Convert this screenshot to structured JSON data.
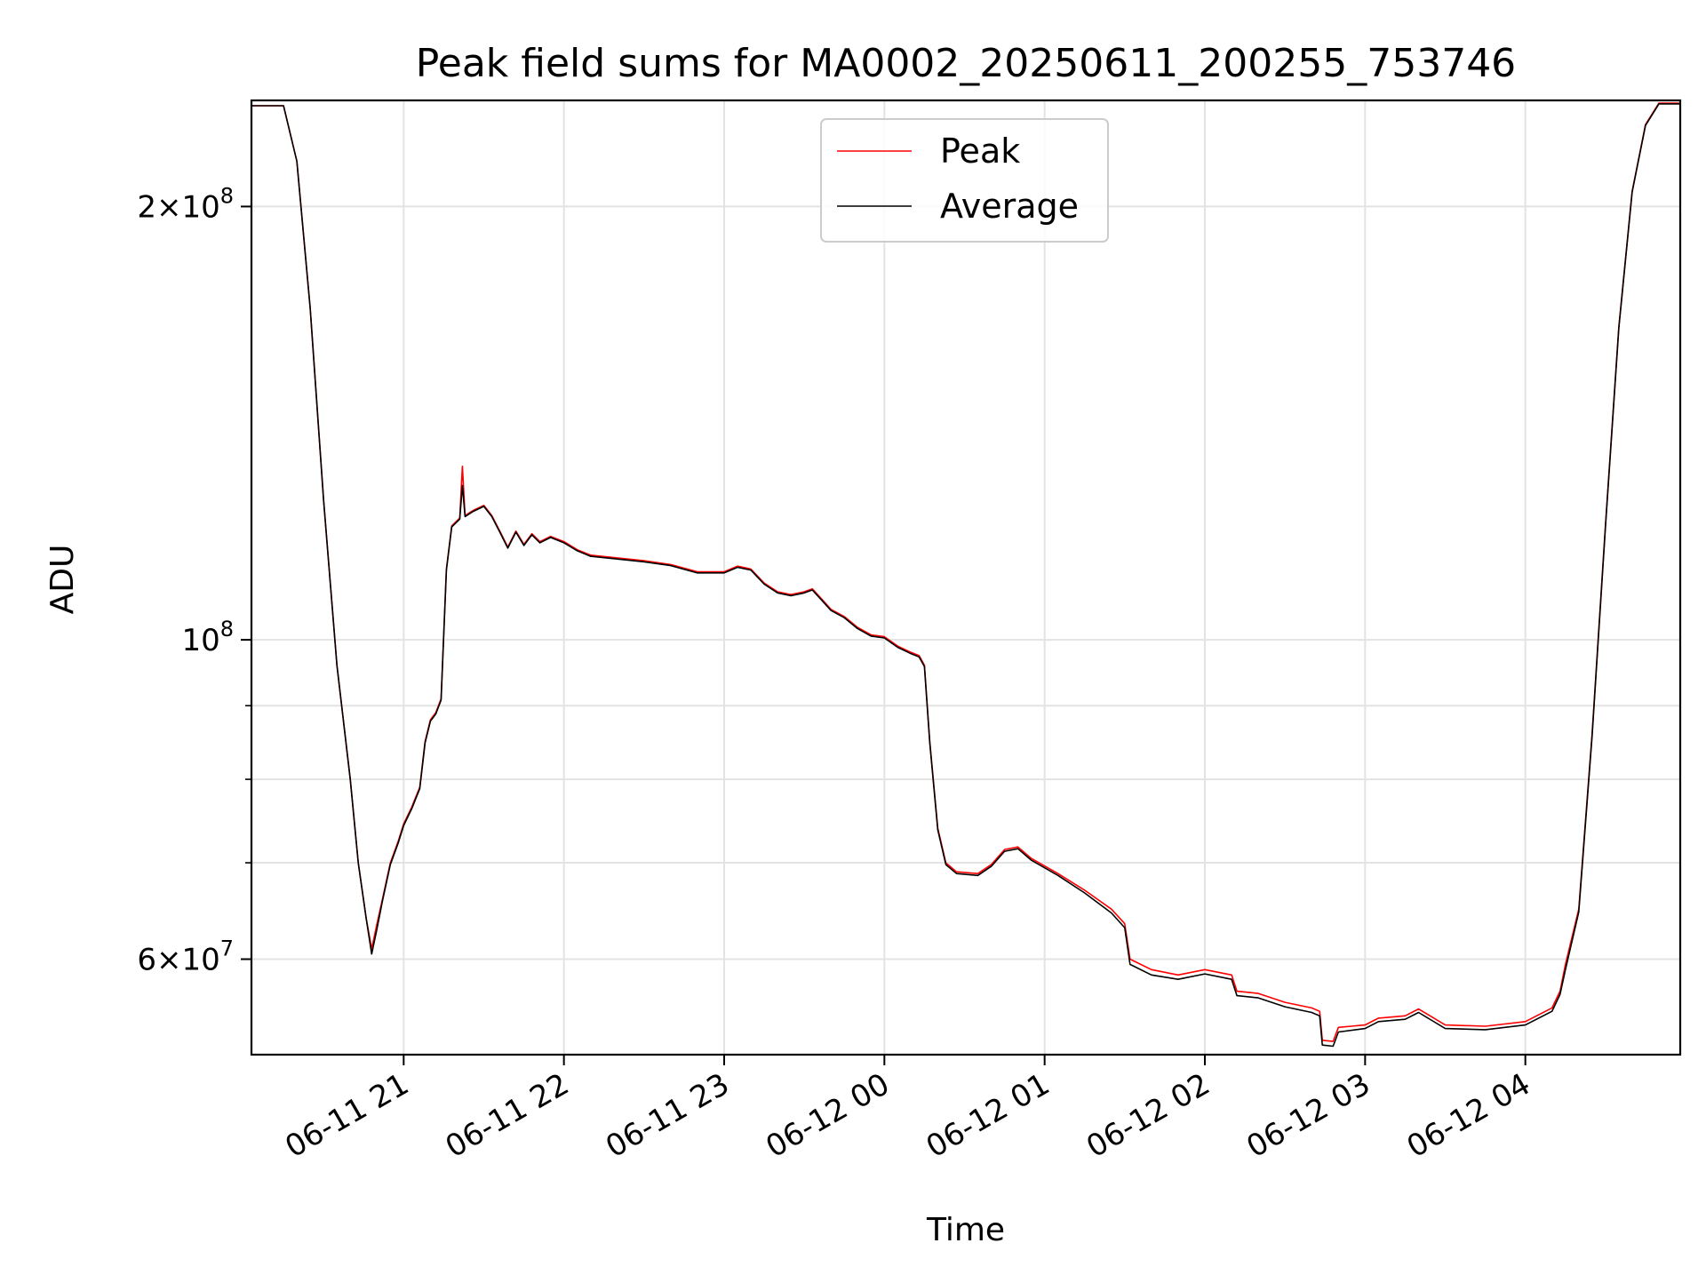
{
  "chart_data": {
    "type": "line",
    "title": "Peak field sums for MA0002_20250611_200255_753746",
    "xlabel": "Time",
    "ylabel": "ADU",
    "yscale": "log",
    "ylim": [
      51500000,
      237000000
    ],
    "xlim": [
      "2025-06-11 20:03",
      "2025-06-12 04:58"
    ],
    "x_ticks": [
      "06-11 21",
      "06-11 22",
      "06-11 23",
      "06-12 00",
      "06-12 01",
      "06-12 02",
      "06-12 03",
      "06-12 04"
    ],
    "y_ticks": [
      {
        "value": 60000000,
        "mantissa": "6",
        "exp": "7"
      },
      {
        "value": 100000000,
        "mantissa": "",
        "exp": "8"
      },
      {
        "value": 200000000,
        "mantissa": "2",
        "exp": "8"
      }
    ],
    "grid": true,
    "legend_position": "top-center",
    "series": [
      {
        "name": "Peak",
        "color": "#ff0000",
        "values": [
          [
            "2025-06-11 20:03",
            235000000
          ],
          [
            "2025-06-11 20:15",
            235000000
          ],
          [
            "2025-06-11 20:20",
            215000000
          ],
          [
            "2025-06-11 20:25",
            170000000
          ],
          [
            "2025-06-11 20:30",
            125000000
          ],
          [
            "2025-06-11 20:35",
            96000000
          ],
          [
            "2025-06-11 20:40",
            80000000
          ],
          [
            "2025-06-11 20:43",
            70000000
          ],
          [
            "2025-06-11 20:46",
            64000000
          ],
          [
            "2025-06-11 20:48",
            61000000
          ],
          [
            "2025-06-11 20:50",
            63500000
          ],
          [
            "2025-06-11 20:52",
            66000000
          ],
          [
            "2025-06-11 20:55",
            70000000
          ],
          [
            "2025-06-11 20:58",
            72500000
          ],
          [
            "2025-06-11 21:00",
            74500000
          ],
          [
            "2025-06-11 21:03",
            76500000
          ],
          [
            "2025-06-11 21:06",
            79000000
          ],
          [
            "2025-06-11 21:08",
            85000000
          ],
          [
            "2025-06-11 21:10",
            88000000
          ],
          [
            "2025-06-11 21:12",
            89000000
          ],
          [
            "2025-06-11 21:14",
            91000000
          ],
          [
            "2025-06-11 21:16",
            112000000
          ],
          [
            "2025-06-11 21:18",
            120000000
          ],
          [
            "2025-06-11 21:21",
            121500000
          ],
          [
            "2025-06-11 21:22",
            132000000
          ],
          [
            "2025-06-11 21:23",
            122000000
          ],
          [
            "2025-06-11 21:26",
            123000000
          ],
          [
            "2025-06-11 21:30",
            124000000
          ],
          [
            "2025-06-11 21:33",
            122000000
          ],
          [
            "2025-06-11 21:36",
            119000000
          ],
          [
            "2025-06-11 21:39",
            116000000
          ],
          [
            "2025-06-11 21:42",
            119000000
          ],
          [
            "2025-06-11 21:45",
            116500000
          ],
          [
            "2025-06-11 21:48",
            118500000
          ],
          [
            "2025-06-11 21:51",
            117000000
          ],
          [
            "2025-06-11 21:55",
            118000000
          ],
          [
            "2025-06-11 22:00",
            117000000
          ],
          [
            "2025-06-11 22:05",
            115500000
          ],
          [
            "2025-06-11 22:10",
            114500000
          ],
          [
            "2025-06-11 22:20",
            114000000
          ],
          [
            "2025-06-11 22:30",
            113500000
          ],
          [
            "2025-06-11 22:40",
            112800000
          ],
          [
            "2025-06-11 22:50",
            111500000
          ],
          [
            "2025-06-11 23:00",
            111500000
          ],
          [
            "2025-06-11 23:05",
            112500000
          ],
          [
            "2025-06-11 23:10",
            112000000
          ],
          [
            "2025-06-11 23:15",
            109500000
          ],
          [
            "2025-06-11 23:20",
            108000000
          ],
          [
            "2025-06-11 23:25",
            107500000
          ],
          [
            "2025-06-11 23:30",
            108000000
          ],
          [
            "2025-06-11 23:33",
            108500000
          ],
          [
            "2025-06-11 23:37",
            106500000
          ],
          [
            "2025-06-11 23:40",
            105000000
          ],
          [
            "2025-06-11 23:45",
            103800000
          ],
          [
            "2025-06-11 23:50",
            102000000
          ],
          [
            "2025-06-11 23:55",
            100800000
          ],
          [
            "2025-06-12 00:00",
            100500000
          ],
          [
            "2025-06-12 00:05",
            99000000
          ],
          [
            "2025-06-12 00:10",
            98000000
          ],
          [
            "2025-06-12 00:13",
            97500000
          ],
          [
            "2025-06-12 00:15",
            96000000
          ],
          [
            "2025-06-12 00:17",
            85000000
          ],
          [
            "2025-06-12 00:20",
            74000000
          ],
          [
            "2025-06-12 00:23",
            70000000
          ],
          [
            "2025-06-12 00:27",
            69000000
          ],
          [
            "2025-06-12 00:35",
            68800000
          ],
          [
            "2025-06-12 00:40",
            69800000
          ],
          [
            "2025-06-12 00:45",
            71500000
          ],
          [
            "2025-06-12 00:50",
            71800000
          ],
          [
            "2025-06-12 00:55",
            70500000
          ],
          [
            "2025-06-12 01:05",
            68800000
          ],
          [
            "2025-06-12 01:15",
            67000000
          ],
          [
            "2025-06-12 01:25",
            65000000
          ],
          [
            "2025-06-12 01:30",
            63500000
          ],
          [
            "2025-06-12 01:32",
            60000000
          ],
          [
            "2025-06-12 01:40",
            59000000
          ],
          [
            "2025-06-12 01:50",
            58500000
          ],
          [
            "2025-06-12 02:00",
            59000000
          ],
          [
            "2025-06-12 02:10",
            58500000
          ],
          [
            "2025-06-12 02:12",
            57000000
          ],
          [
            "2025-06-12 02:20",
            56800000
          ],
          [
            "2025-06-12 02:30",
            56000000
          ],
          [
            "2025-06-12 02:40",
            55500000
          ],
          [
            "2025-06-12 02:43",
            55200000
          ],
          [
            "2025-06-12 02:44",
            52700000
          ],
          [
            "2025-06-12 02:48",
            52600000
          ],
          [
            "2025-06-12 02:50",
            53800000
          ],
          [
            "2025-06-12 03:00",
            54000000
          ],
          [
            "2025-06-12 03:05",
            54600000
          ],
          [
            "2025-06-12 03:15",
            54800000
          ],
          [
            "2025-06-12 03:20",
            55400000
          ],
          [
            "2025-06-12 03:25",
            54700000
          ],
          [
            "2025-06-12 03:30",
            54000000
          ],
          [
            "2025-06-12 03:45",
            53900000
          ],
          [
            "2025-06-12 04:00",
            54300000
          ],
          [
            "2025-06-12 04:10",
            55500000
          ],
          [
            "2025-06-12 04:13",
            57000000
          ],
          [
            "2025-06-12 04:15",
            59500000
          ],
          [
            "2025-06-12 04:20",
            65000000
          ],
          [
            "2025-06-12 04:25",
            86000000
          ],
          [
            "2025-06-12 04:30",
            120000000
          ],
          [
            "2025-06-12 04:35",
            165000000
          ],
          [
            "2025-06-12 04:40",
            205000000
          ],
          [
            "2025-06-12 04:45",
            228000000
          ],
          [
            "2025-06-12 04:50",
            236000000
          ],
          [
            "2025-06-12 04:58",
            236000000
          ]
        ]
      },
      {
        "name": "Average",
        "color": "#000000",
        "values": [
          [
            "2025-06-11 20:03",
            235000000
          ],
          [
            "2025-06-11 20:15",
            235000000
          ],
          [
            "2025-06-11 20:20",
            215000000
          ],
          [
            "2025-06-11 20:25",
            170000000
          ],
          [
            "2025-06-11 20:30",
            125000000
          ],
          [
            "2025-06-11 20:35",
            96000000
          ],
          [
            "2025-06-11 20:40",
            80000000
          ],
          [
            "2025-06-11 20:43",
            70000000
          ],
          [
            "2025-06-11 20:46",
            64000000
          ],
          [
            "2025-06-11 20:48",
            60500000
          ],
          [
            "2025-06-11 20:50",
            63000000
          ],
          [
            "2025-06-11 20:52",
            65800000
          ],
          [
            "2025-06-11 20:55",
            69800000
          ],
          [
            "2025-06-11 20:58",
            72300000
          ],
          [
            "2025-06-11 21:00",
            74300000
          ],
          [
            "2025-06-11 21:03",
            76300000
          ],
          [
            "2025-06-11 21:06",
            78800000
          ],
          [
            "2025-06-11 21:08",
            84800000
          ],
          [
            "2025-06-11 21:10",
            87800000
          ],
          [
            "2025-06-11 21:12",
            88800000
          ],
          [
            "2025-06-11 21:14",
            90800000
          ],
          [
            "2025-06-11 21:16",
            111800000
          ],
          [
            "2025-06-11 21:18",
            119800000
          ],
          [
            "2025-06-11 21:21",
            121300000
          ],
          [
            "2025-06-11 21:22",
            128000000
          ],
          [
            "2025-06-11 21:23",
            121800000
          ],
          [
            "2025-06-11 21:26",
            122800000
          ],
          [
            "2025-06-11 21:30",
            123800000
          ],
          [
            "2025-06-11 21:33",
            121800000
          ],
          [
            "2025-06-11 21:36",
            118800000
          ],
          [
            "2025-06-11 21:39",
            115800000
          ],
          [
            "2025-06-11 21:42",
            118800000
          ],
          [
            "2025-06-11 21:45",
            116300000
          ],
          [
            "2025-06-11 21:48",
            118300000
          ],
          [
            "2025-06-11 21:51",
            116800000
          ],
          [
            "2025-06-11 21:55",
            117800000
          ],
          [
            "2025-06-11 22:00",
            116800000
          ],
          [
            "2025-06-11 22:05",
            115300000
          ],
          [
            "2025-06-11 22:10",
            114300000
          ],
          [
            "2025-06-11 22:20",
            113800000
          ],
          [
            "2025-06-11 22:30",
            113300000
          ],
          [
            "2025-06-11 22:40",
            112600000
          ],
          [
            "2025-06-11 22:50",
            111300000
          ],
          [
            "2025-06-11 23:00",
            111300000
          ],
          [
            "2025-06-11 23:05",
            112300000
          ],
          [
            "2025-06-11 23:10",
            111800000
          ],
          [
            "2025-06-11 23:15",
            109300000
          ],
          [
            "2025-06-11 23:20",
            107800000
          ],
          [
            "2025-06-11 23:25",
            107300000
          ],
          [
            "2025-06-11 23:30",
            107800000
          ],
          [
            "2025-06-11 23:33",
            108300000
          ],
          [
            "2025-06-11 23:37",
            106300000
          ],
          [
            "2025-06-11 23:40",
            104800000
          ],
          [
            "2025-06-11 23:45",
            103600000
          ],
          [
            "2025-06-11 23:50",
            101800000
          ],
          [
            "2025-06-11 23:55",
            100600000
          ],
          [
            "2025-06-12 00:00",
            100300000
          ],
          [
            "2025-06-12 00:05",
            98800000
          ],
          [
            "2025-06-12 00:10",
            97800000
          ],
          [
            "2025-06-12 00:13",
            97300000
          ],
          [
            "2025-06-12 00:15",
            95800000
          ],
          [
            "2025-06-12 00:17",
            84800000
          ],
          [
            "2025-06-12 00:20",
            73800000
          ],
          [
            "2025-06-12 00:23",
            69800000
          ],
          [
            "2025-06-12 00:27",
            68800000
          ],
          [
            "2025-06-12 00:35",
            68600000
          ],
          [
            "2025-06-12 00:40",
            69600000
          ],
          [
            "2025-06-12 00:45",
            71300000
          ],
          [
            "2025-06-12 00:50",
            71600000
          ],
          [
            "2025-06-12 00:55",
            70300000
          ],
          [
            "2025-06-12 01:05",
            68600000
          ],
          [
            "2025-06-12 01:15",
            66700000
          ],
          [
            "2025-06-12 01:25",
            64600000
          ],
          [
            "2025-06-12 01:30",
            63100000
          ],
          [
            "2025-06-12 01:32",
            59500000
          ],
          [
            "2025-06-12 01:40",
            58500000
          ],
          [
            "2025-06-12 01:50",
            58100000
          ],
          [
            "2025-06-12 02:00",
            58600000
          ],
          [
            "2025-06-12 02:10",
            58100000
          ],
          [
            "2025-06-12 02:12",
            56600000
          ],
          [
            "2025-06-12 02:20",
            56400000
          ],
          [
            "2025-06-12 02:30",
            55600000
          ],
          [
            "2025-06-12 02:40",
            55100000
          ],
          [
            "2025-06-12 02:43",
            54800000
          ],
          [
            "2025-06-12 02:44",
            52300000
          ],
          [
            "2025-06-12 02:48",
            52200000
          ],
          [
            "2025-06-12 02:50",
            53400000
          ],
          [
            "2025-06-12 03:00",
            53700000
          ],
          [
            "2025-06-12 03:05",
            54300000
          ],
          [
            "2025-06-12 03:15",
            54500000
          ],
          [
            "2025-06-12 03:20",
            55100000
          ],
          [
            "2025-06-12 03:25",
            54400000
          ],
          [
            "2025-06-12 03:30",
            53700000
          ],
          [
            "2025-06-12 03:45",
            53600000
          ],
          [
            "2025-06-12 04:00",
            54000000
          ],
          [
            "2025-06-12 04:10",
            55200000
          ],
          [
            "2025-06-12 04:13",
            56700000
          ],
          [
            "2025-06-12 04:15",
            59000000
          ],
          [
            "2025-06-12 04:20",
            64700000
          ],
          [
            "2025-06-12 04:25",
            85700000
          ],
          [
            "2025-06-12 04:30",
            119700000
          ],
          [
            "2025-06-12 04:35",
            164700000
          ],
          [
            "2025-06-12 04:40",
            204700000
          ],
          [
            "2025-06-12 04:45",
            227700000
          ],
          [
            "2025-06-12 04:50",
            235700000
          ],
          [
            "2025-06-12 04:58",
            235700000
          ]
        ]
      }
    ]
  }
}
